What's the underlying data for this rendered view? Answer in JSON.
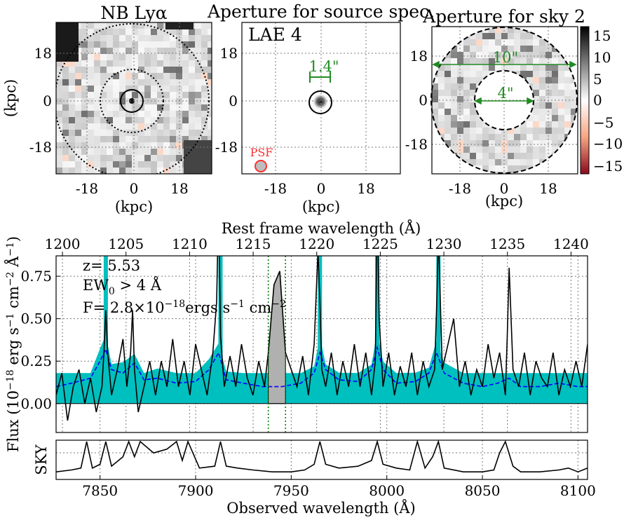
{
  "panels": {
    "nb": {
      "title": "NB Lyα",
      "xlabel": "(kpc)",
      "ylabel": "(kpc)",
      "xticks": [
        "-18",
        "0",
        "18"
      ],
      "yticks": [
        "18",
        "0",
        "-18"
      ]
    },
    "source": {
      "title": "Aperture for source spec.",
      "label": "LAE 4",
      "aperture_text": "1.4\"",
      "psf_label": "PSF",
      "xlabel": "(kpc)",
      "xticks": [
        "-18",
        "0",
        "18"
      ],
      "yticks": [
        "18",
        "0",
        "-18"
      ]
    },
    "sky": {
      "title": "Aperture for sky 2",
      "outer_text": "10\"",
      "inner_text": "4\"",
      "xlabel": "(kpc)",
      "xticks": [
        "-18",
        "0",
        "18"
      ],
      "yticks": [
        "18",
        "0",
        "-18"
      ],
      "colorbar_ticks": [
        "15",
        "10",
        "5",
        "0",
        "−5",
        "−10",
        "−15"
      ]
    }
  },
  "spectrum": {
    "top_xlabel": "Rest frame wavelength (Å)",
    "top_ticks": [
      "1200",
      "1205",
      "1210",
      "1215",
      "1220",
      "1225",
      "1230",
      "1235",
      "1240"
    ],
    "yticks": [
      "0.75",
      "0.50",
      "0.25",
      "0.00"
    ],
    "ylabel": "Flux (10^-18 erg s^-1 cm^-2 Å^-1)",
    "annotations": {
      "z": "z= 5.53",
      "ew": "EW0 > 4 Å",
      "flux": "F= 2.8×10^-18 ergs s^-1 cm^-2"
    },
    "sky_label": "SKY",
    "bottom_xlabel": "Observed wavelength (Å)",
    "bottom_ticks": [
      "7850",
      "7900",
      "7950",
      "8000",
      "8050",
      "8100"
    ]
  },
  "colors": {
    "error_fill": "#00bfbf",
    "model": "#0000ff",
    "data": "#000000",
    "window": "#008000",
    "aperture": "#228b22",
    "psf": "#ff3030"
  },
  "chart_data": [
    {
      "type": "heatmap",
      "title": "NB Lyα",
      "xlabel": "(kpc)",
      "ylabel": "(kpc)",
      "xlim": [
        -30,
        30
      ],
      "ylim": [
        -30,
        30
      ],
      "grid": true
    },
    {
      "type": "heatmap",
      "title": "Aperture for source spec.",
      "xlabel": "(kpc)",
      "xlim": [
        -30,
        30
      ],
      "ylim": [
        -30,
        30
      ],
      "grid": true
    },
    {
      "type": "heatmap",
      "title": "Aperture for sky 2",
      "xlabel": "(kpc)",
      "xlim": [
        -30,
        30
      ],
      "ylim": [
        -30,
        30
      ],
      "colorbar_range": [
        -17,
        17
      ],
      "grid": true
    },
    {
      "type": "line",
      "xlabel": "Observed wavelength (Å)",
      "ylabel": "Flux (10^-18 erg s^-1 cm^-2 Å^-1)",
      "secondary_xlabel": "Rest frame wavelength (Å)",
      "xlim": [
        7827,
        8105
      ],
      "ylim": [
        -0.17,
        0.87
      ],
      "rest_xlim": [
        1199.5,
        1241.3
      ],
      "window": [
        7938,
        7947
      ],
      "grid": true,
      "series": {
        "flux": {
          "x": [
            7827,
            7830,
            7833,
            7836,
            7839,
            7842,
            7845,
            7848,
            7851,
            7852,
            7853,
            7854,
            7856,
            7859,
            7862,
            7864,
            7866,
            7867,
            7868,
            7870,
            7873,
            7876,
            7879,
            7882,
            7885,
            7888,
            7891,
            7894,
            7897,
            7900,
            7903,
            7906,
            7909,
            7911,
            7912,
            7913,
            7915,
            7918,
            7921,
            7924,
            7927,
            7930,
            7933,
            7936,
            7938,
            7941,
            7944,
            7947,
            7950,
            7953,
            7956,
            7959,
            7962,
            7964,
            7965,
            7966,
            7968,
            7971,
            7974,
            7977,
            7980,
            7983,
            7986,
            7989,
            7992,
            7994,
            7995,
            7996,
            7998,
            8001,
            8004,
            8007,
            8010,
            8013,
            8016,
            8019,
            8022,
            8025,
            8026,
            8027,
            8029,
            8032,
            8035,
            8038,
            8041,
            8044,
            8047,
            8050,
            8053,
            8056,
            8059,
            8062,
            8063,
            8064,
            8066,
            8069,
            8072,
            8075,
            8078,
            8081,
            8084,
            8087,
            8090,
            8093,
            8096,
            8099,
            8102,
            8105
          ],
          "y": [
            0.05,
            0.18,
            -0.1,
            0.1,
            0.2,
            0.0,
            0.15,
            -0.05,
            0.1,
            0.3,
            0.55,
            0.3,
            0.05,
            0.2,
            0.38,
            0.1,
            0.3,
            0.55,
            0.2,
            -0.05,
            0.1,
            0.25,
            0.05,
            0.25,
            0.1,
            0.38,
            0.1,
            0.25,
            0.05,
            0.35,
            0.2,
            0.05,
            0.3,
            0.6,
            1.2,
            0.4,
            0.1,
            0.28,
            0.1,
            0.35,
            0.15,
            0.05,
            0.25,
            0.1,
            0.3,
            0.7,
            0.78,
            0.3,
            0.2,
            0.1,
            0.28,
            0.05,
            0.35,
            0.9,
            0.6,
            0.2,
            0.1,
            0.3,
            0.05,
            0.25,
            0.1,
            0.35,
            0.1,
            0.3,
            0.05,
            0.25,
            1.2,
            0.5,
            0.1,
            0.3,
            0.05,
            0.22,
            0.1,
            0.3,
            0.05,
            0.25,
            0.1,
            0.2,
            0.55,
            1.0,
            0.2,
            0.35,
            0.5,
            0.1,
            0.25,
            0.05,
            0.2,
            0.1,
            0.35,
            0.15,
            0.3,
            0.05,
            0.4,
            0.8,
            0.2,
            0.1,
            0.3,
            0.05,
            0.25,
            0.15,
            0.1,
            0.3,
            0.05,
            0.2,
            0.1,
            0.25,
            0.1,
            0.35
          ]
        },
        "model": {
          "x": [
            7827,
            7835,
            7845,
            7850,
            7853,
            7856,
            7862,
            7868,
            7873,
            7880,
            7890,
            7900,
            7907,
            7912,
            7916,
            7925,
            7935,
            7945,
            7955,
            7962,
            7965,
            7968,
            7975,
            7985,
            7992,
            7995,
            7998,
            8005,
            8015,
            8022,
            8026,
            8030,
            8040,
            8050,
            8058,
            8064,
            8070,
            8080,
            8090,
            8100,
            8105
          ],
          "y": [
            0.1,
            0.12,
            0.15,
            0.25,
            0.32,
            0.2,
            0.18,
            0.24,
            0.14,
            0.15,
            0.12,
            0.13,
            0.2,
            0.3,
            0.14,
            0.12,
            0.1,
            0.1,
            0.12,
            0.18,
            0.3,
            0.2,
            0.14,
            0.13,
            0.2,
            0.33,
            0.2,
            0.12,
            0.13,
            0.18,
            0.3,
            0.18,
            0.12,
            0.1,
            0.12,
            0.15,
            0.1,
            0.1,
            0.12,
            0.1,
            0.1
          ]
        },
        "sky": {
          "x": [
            7827,
            7835,
            7840,
            7843,
            7846,
            7850,
            7853,
            7856,
            7862,
            7865,
            7868,
            7871,
            7878,
            7885,
            7890,
            7893,
            7896,
            7902,
            7910,
            7913,
            7916,
            7922,
            7930,
            7940,
            7950,
            7957,
            7962,
            7965,
            7968,
            7975,
            7985,
            7992,
            7995,
            7998,
            8005,
            8012,
            8016,
            8020,
            8024,
            8027,
            8030,
            8040,
            8050,
            8056,
            8059,
            8062,
            8066,
            8070,
            8080,
            8090,
            8095,
            8100,
            8105
          ],
          "y": [
            0.2,
            0.25,
            0.3,
            1.0,
            0.3,
            0.4,
            1.0,
            0.35,
            0.6,
            1.0,
            0.6,
            1.0,
            0.7,
            0.8,
            1.0,
            0.5,
            1.0,
            0.3,
            0.35,
            1.0,
            0.35,
            0.3,
            0.25,
            0.2,
            0.2,
            0.25,
            0.4,
            1.0,
            0.4,
            0.3,
            0.35,
            0.5,
            1.0,
            0.4,
            0.3,
            0.25,
            1.0,
            0.3,
            0.6,
            1.0,
            0.3,
            0.2,
            0.2,
            0.25,
            0.7,
            1.0,
            0.35,
            0.2,
            0.2,
            0.25,
            0.3,
            0.2,
            0.3
          ]
        }
      }
    }
  ]
}
